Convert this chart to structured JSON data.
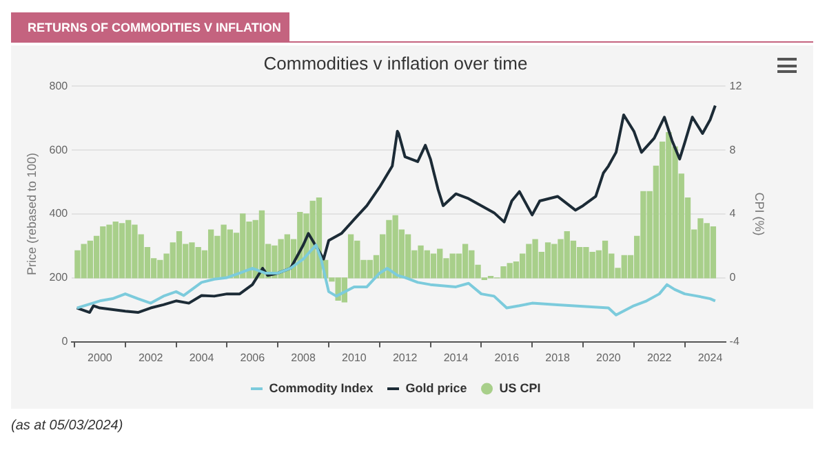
{
  "chart_data": {
    "type": "line",
    "title": "Commodities v inflation over time",
    "ylabel": "Price (rebased to 100)",
    "y2label": "CPI (%)",
    "annotations": [
      "RETURNS OF COMMODITIES V INFLATION",
      "(as at 05/03/2024)"
    ],
    "xlim": [
      1998.9,
      2024.6
    ],
    "xticks": [
      2000,
      2002,
      2004,
      2006,
      2008,
      2010,
      2012,
      2014,
      2016,
      2018,
      2020,
      2022,
      2024
    ],
    "ylim": [
      0,
      800
    ],
    "yticks": [
      0,
      200,
      400,
      600,
      800
    ],
    "y2lim": [
      -4,
      12
    ],
    "y2ticks": [
      -4,
      0,
      4,
      8,
      12
    ],
    "grid": "y",
    "legend": "bottom",
    "series": [
      {
        "name": "Commodity Index",
        "color": "#7ccbdc",
        "x": [
          1999.1,
          2000,
          2000.5,
          2001,
          2001.5,
          2002,
          2002.5,
          2003,
          2003.3,
          2004,
          2004.5,
          2005,
          2005.5,
          2006,
          2006.5,
          2007,
          2007.5,
          2008,
          2008.5,
          2008.7,
          2009,
          2009.3,
          2010,
          2010.5,
          2011,
          2011.3,
          2011.7,
          2012,
          2012.5,
          2013,
          2014,
          2014.5,
          2015,
          2015.5,
          2016,
          2016.5,
          2017,
          2018,
          2019,
          2020,
          2020.3,
          2021,
          2021.5,
          2022,
          2022.3,
          2022.6,
          2023,
          2023.5,
          2024,
          2024.2
        ],
        "values": [
          106,
          128,
          135,
          150,
          135,
          121,
          143,
          157,
          145,
          186,
          196,
          201,
          215,
          230,
          215,
          215,
          230,
          259,
          303,
          259,
          157,
          143,
          172,
          172,
          215,
          230,
          208,
          201,
          186,
          179,
          172,
          183,
          150,
          143,
          106,
          113,
          121,
          116,
          111,
          106,
          84,
          113,
          128,
          150,
          179,
          164,
          150,
          143,
          135,
          128
        ]
      },
      {
        "name": "Gold price",
        "color": "#1c2b36",
        "x": [
          1999.1,
          1999.6,
          1999.75,
          2000,
          2001,
          2001.5,
          2002,
          2002.5,
          2003,
          2003.5,
          2004,
          2004.5,
          2005,
          2005.5,
          2006,
          2006.4,
          2006.6,
          2007,
          2007.5,
          2008,
          2008.2,
          2008.8,
          2009,
          2009.5,
          2010,
          2010.5,
          2011,
          2011.5,
          2011.7,
          2011.75,
          2012,
          2012.5,
          2012.8,
          2013,
          2013.3,
          2013.5,
          2014,
          2014.5,
          2015,
          2015.5,
          2015.9,
          2016.2,
          2016.5,
          2017,
          2017.3,
          2018,
          2018.7,
          2019,
          2019.5,
          2019.8,
          2020,
          2020.3,
          2020.6,
          2021,
          2021.3,
          2021.8,
          2022.2,
          2022.5,
          2022.8,
          2023,
          2023.3,
          2023.7,
          2024,
          2024.2
        ],
        "values": [
          106,
          92,
          113,
          106,
          96,
          92,
          106,
          116,
          128,
          121,
          145,
          143,
          150,
          150,
          179,
          230,
          208,
          215,
          230,
          303,
          339,
          259,
          317,
          339,
          383,
          426,
          484,
          550,
          659,
          652,
          579,
          564,
          615,
          572,
          477,
          426,
          463,
          448,
          426,
          404,
          375,
          441,
          470,
          397,
          441,
          455,
          412,
          426,
          455,
          528,
          550,
          593,
          710,
          659,
          593,
          637,
          703,
          630,
          572,
          623,
          703,
          652,
          695,
          739
        ]
      },
      {
        "name": "US CPI",
        "type": "bar",
        "axis": "y2",
        "color": "#a8cf8a",
        "x": [
          1999.12,
          1999.37,
          1999.62,
          1999.87,
          2000.12,
          2000.37,
          2000.62,
          2000.87,
          2001.12,
          2001.37,
          2001.62,
          2001.87,
          2002.12,
          2002.37,
          2002.62,
          2002.87,
          2003.12,
          2003.37,
          2003.62,
          2003.87,
          2004.12,
          2004.37,
          2004.62,
          2004.87,
          2005.12,
          2005.37,
          2005.62,
          2005.87,
          2006.12,
          2006.37,
          2006.62,
          2006.87,
          2007.12,
          2007.37,
          2007.62,
          2007.87,
          2008.12,
          2008.37,
          2008.62,
          2008.87,
          2009.12,
          2009.37,
          2009.62,
          2009.87,
          2010.12,
          2010.37,
          2010.62,
          2010.87,
          2011.12,
          2011.37,
          2011.62,
          2011.87,
          2012.12,
          2012.37,
          2012.62,
          2012.87,
          2013.12,
          2013.37,
          2013.62,
          2013.87,
          2014.12,
          2014.37,
          2014.62,
          2014.87,
          2015.12,
          2015.37,
          2015.62,
          2015.87,
          2016.12,
          2016.37,
          2016.62,
          2016.87,
          2017.12,
          2017.37,
          2017.62,
          2017.87,
          2018.12,
          2018.37,
          2018.62,
          2018.87,
          2019.12,
          2019.37,
          2019.62,
          2019.87,
          2020.12,
          2020.37,
          2020.62,
          2020.87,
          2021.12,
          2021.37,
          2021.62,
          2021.87,
          2022.12,
          2022.37,
          2022.62,
          2022.87,
          2023.12,
          2023.37,
          2023.62,
          2023.87,
          2024.12
        ],
        "values": [
          1.7,
          2.1,
          2.3,
          2.6,
          3.2,
          3.3,
          3.5,
          3.4,
          3.6,
          3.3,
          2.7,
          1.9,
          1.2,
          1.1,
          1.5,
          2.2,
          2.9,
          2.1,
          2.2,
          1.9,
          1.7,
          3.0,
          2.6,
          3.3,
          3.0,
          2.8,
          4.0,
          3.5,
          3.6,
          4.2,
          2.1,
          2.0,
          2.4,
          2.7,
          2.4,
          4.1,
          4.0,
          4.8,
          5.0,
          1.1,
          -0.2,
          -1.4,
          -1.5,
          2.7,
          2.3,
          1.1,
          1.1,
          1.4,
          2.7,
          3.6,
          3.9,
          3.0,
          2.7,
          1.7,
          2.0,
          1.7,
          1.5,
          1.8,
          1.2,
          1.5,
          1.5,
          2.1,
          1.7,
          0.8,
          -0.1,
          0.1,
          0.0,
          0.7,
          0.9,
          1.0,
          1.5,
          2.1,
          2.4,
          1.6,
          2.2,
          2.1,
          2.4,
          2.9,
          2.3,
          1.9,
          1.9,
          1.6,
          1.7,
          2.3,
          1.5,
          0.6,
          1.4,
          1.4,
          2.6,
          5.4,
          5.4,
          7.0,
          8.5,
          9.1,
          8.2,
          6.5,
          5.0,
          3.0,
          3.7,
          3.4,
          3.2
        ]
      }
    ]
  }
}
